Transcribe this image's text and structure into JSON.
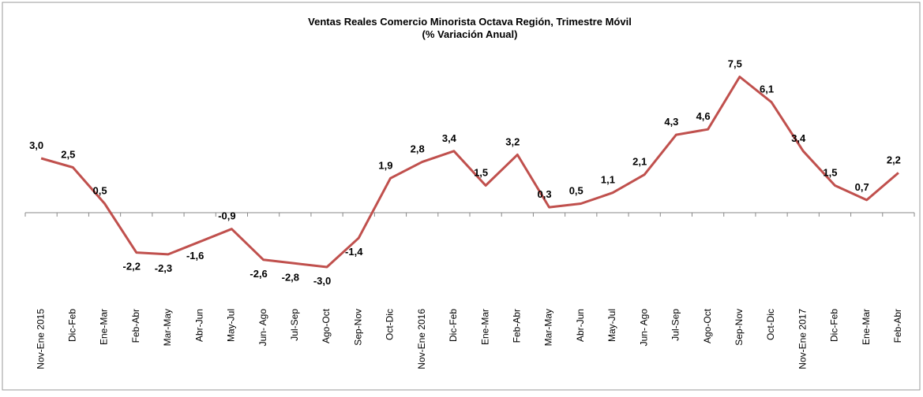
{
  "chart_data": {
    "type": "line",
    "title": "Ventas Reales Comercio Minorista Octava Región, Trimestre Móvil",
    "subtitle": "(% Variación Anual)",
    "categories": [
      "Nov-Ene 2015",
      "Dic-Feb",
      "Ene-Mar",
      "Feb-Abr",
      "Mar-May",
      "Abr-Jun",
      "May-Jul",
      "Jun- Ago",
      "Jul-Sep",
      "Ago-Oct",
      "Sep-Nov",
      "Oct-Dic",
      "Nov-Ene 2016",
      "Dic-Feb",
      "Ene-Mar",
      "Feb-Abr",
      "Mar-May",
      "Abr-Jun",
      "May-Jul",
      "Jun- Ago",
      "Jul-Sep",
      "Ago-Oct",
      "Sep-Nov",
      "Oct-Dic",
      "Nov-Ene 2017",
      "Dic-Feb",
      "Ene-Mar",
      "Feb-Abr"
    ],
    "values": [
      3.0,
      2.5,
      0.5,
      -2.2,
      -2.3,
      -1.6,
      -0.9,
      -2.6,
      -2.8,
      -3.0,
      -1.4,
      1.9,
      2.8,
      3.4,
      1.5,
      3.2,
      0.3,
      0.5,
      1.1,
      2.1,
      4.3,
      4.6,
      7.5,
      6.1,
      3.4,
      1.5,
      0.7,
      2.2
    ],
    "value_labels": [
      "3,0",
      "2,5",
      "0,5",
      "-2,2",
      "-2,3",
      "-1,6",
      "-0,9",
      "-2,6",
      "-2,8",
      "-3,0",
      "-1,4",
      "1,9",
      "2,8",
      "3,4",
      "1,5",
      "3,2",
      "0,3",
      "0,5",
      "1,1",
      "2,1",
      "4,3",
      "4,6",
      "7,5",
      "6,1",
      "3,4",
      "1,5",
      "0,7",
      "2,2"
    ],
    "color": "#c0504d",
    "ylim": [
      -5,
      8
    ]
  }
}
